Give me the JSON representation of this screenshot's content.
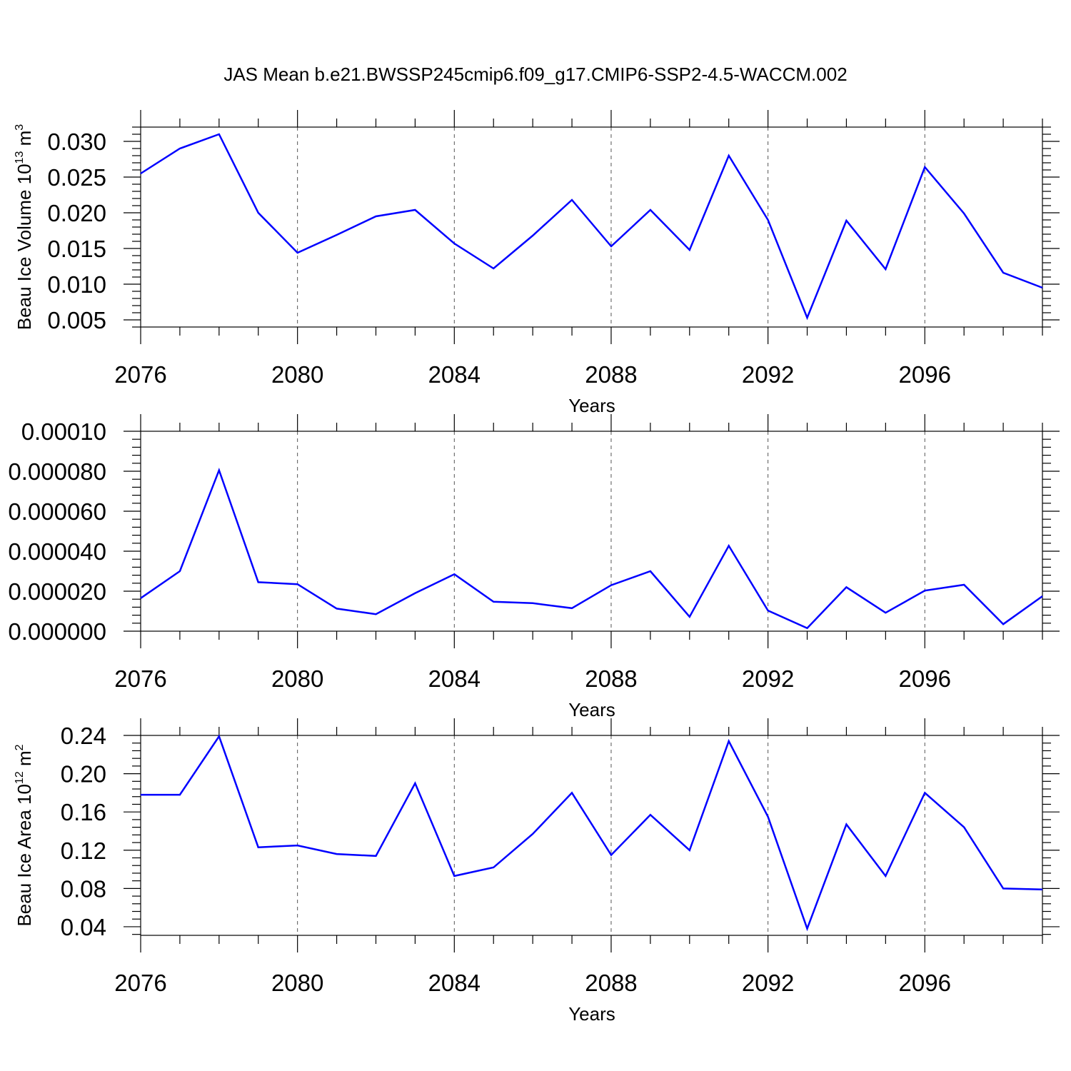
{
  "title": "JAS Mean b.e21.BWSSP245cmip6.f09_g17.CMIP6-SSP2-4.5-WACCM.002",
  "chart_data": [
    {
      "type": "line",
      "ylabel": "Beau Ice Volume 10",
      "ylabel_sup": "13",
      "ylabel_unit": "m",
      "ylabel_unit_sup": "3",
      "xlabel": "Years",
      "xlim": [
        2076,
        2099
      ],
      "ylim": [
        0.004,
        0.032
      ],
      "xticks": [
        2076,
        2080,
        2084,
        2088,
        2092,
        2096
      ],
      "xtick_labels": [
        "2076",
        "2080",
        "2084",
        "2088",
        "2092",
        "2096"
      ],
      "yticks": [
        0.005,
        0.01,
        0.015,
        0.02,
        0.025,
        0.03
      ],
      "ytick_labels": [
        "0.005",
        "0.010",
        "0.015",
        "0.020",
        "0.025",
        "0.030"
      ],
      "grid": "vertical dashed at major x ticks",
      "x": [
        2076,
        2077,
        2078,
        2079,
        2080,
        2081,
        2082,
        2083,
        2084,
        2085,
        2086,
        2087,
        2088,
        2089,
        2090,
        2091,
        2092,
        2093,
        2094,
        2095,
        2096,
        2097,
        2098,
        2099
      ],
      "values": [
        0.0255,
        0.029,
        0.031,
        0.02,
        0.0144,
        0.0169,
        0.0195,
        0.0204,
        0.0157,
        0.0122,
        0.0168,
        0.0218,
        0.0153,
        0.0204,
        0.0148,
        0.028,
        0.019,
        0.0053,
        0.0189,
        0.0121,
        0.0264,
        0.0199,
        0.0116,
        0.0095
      ]
    },
    {
      "type": "line",
      "ylabel": "",
      "xlabel": "Years",
      "xlim": [
        2076,
        2099
      ],
      "ylim": [
        0.0,
        0.0001
      ],
      "xticks": [
        2076,
        2080,
        2084,
        2088,
        2092,
        2096
      ],
      "xtick_labels": [
        "2076",
        "2080",
        "2084",
        "2088",
        "2092",
        "2096"
      ],
      "yticks": [
        0.0,
        2e-05,
        4e-05,
        6e-05,
        8e-05,
        0.0001
      ],
      "ytick_labels": [
        "0.000000",
        "0.000020",
        "0.000040",
        "0.000060",
        "0.000080",
        "0.00010"
      ],
      "grid": "vertical dashed at major x ticks",
      "x": [
        2076,
        2077,
        2078,
        2079,
        2080,
        2081,
        2082,
        2083,
        2084,
        2085,
        2086,
        2087,
        2088,
        2089,
        2090,
        2091,
        2092,
        2093,
        2094,
        2095,
        2096,
        2097,
        2098,
        2099
      ],
      "values": [
        1.65e-05,
        3e-05,
        8.05e-05,
        2.45e-05,
        2.35e-05,
        1.13e-05,
        8.5e-06,
        1.9e-05,
        2.85e-05,
        1.47e-05,
        1.4e-05,
        1.15e-05,
        2.3e-05,
        3e-05,
        7.2e-06,
        4.27e-05,
        1.03e-05,
        1.5e-06,
        2.2e-05,
        9.2e-06,
        2.03e-05,
        2.32e-05,
        3.5e-06,
        1.75e-05
      ]
    },
    {
      "type": "line",
      "ylabel": "Beau Ice Area 10",
      "ylabel_sup": "12",
      "ylabel_unit": "m",
      "ylabel_unit_sup": "2",
      "xlabel": "Years",
      "xlim": [
        2076,
        2099
      ],
      "ylim": [
        0.031,
        0.24
      ],
      "xticks": [
        2076,
        2080,
        2084,
        2088,
        2092,
        2096
      ],
      "xtick_labels": [
        "2076",
        "2080",
        "2084",
        "2088",
        "2092",
        "2096"
      ],
      "yticks": [
        0.04,
        0.08,
        0.12,
        0.16,
        0.2,
        0.24
      ],
      "ytick_labels": [
        "0.04",
        "0.08",
        "0.12",
        "0.16",
        "0.20",
        "0.24"
      ],
      "grid": "vertical dashed at major x ticks",
      "x": [
        2076,
        2077,
        2078,
        2079,
        2080,
        2081,
        2082,
        2083,
        2084,
        2085,
        2086,
        2087,
        2088,
        2089,
        2090,
        2091,
        2092,
        2093,
        2094,
        2095,
        2096,
        2097,
        2098,
        2099
      ],
      "values": [
        0.178,
        0.178,
        0.239,
        0.123,
        0.125,
        0.116,
        0.114,
        0.19,
        0.093,
        0.102,
        0.137,
        0.18,
        0.115,
        0.157,
        0.12,
        0.234,
        0.155,
        0.038,
        0.147,
        0.093,
        0.18,
        0.144,
        0.08,
        0.079
      ]
    }
  ]
}
